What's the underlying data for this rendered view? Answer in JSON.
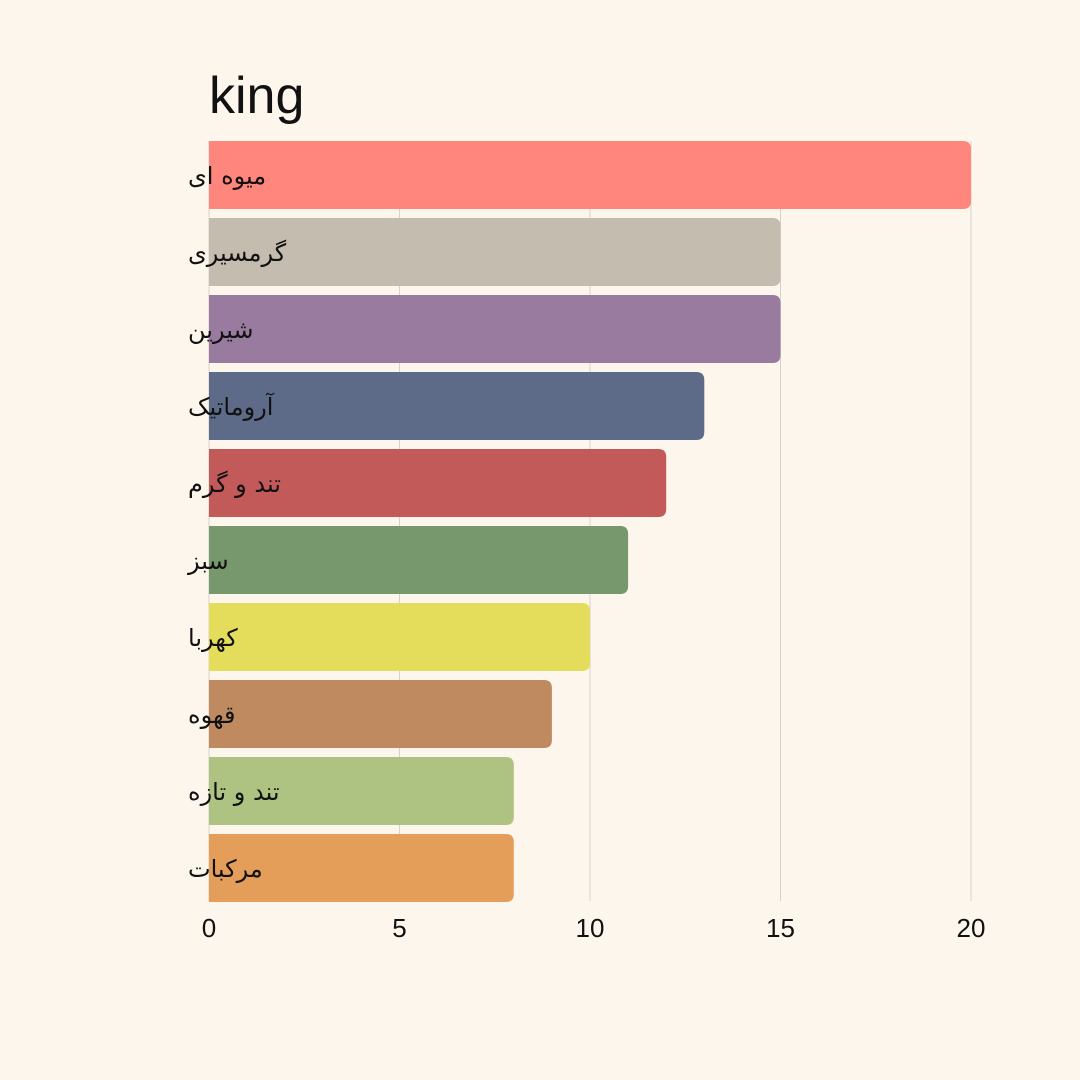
{
  "chart_data": {
    "type": "bar",
    "orientation": "horizontal",
    "title": "king",
    "xlabel": "",
    "ylabel": "",
    "categories": [
      "میوه ای",
      "گرمسیری",
      "شیرین",
      "آروماتیک",
      "تند و گرم",
      "سبز",
      "کهربا",
      "قهوه",
      "تند و تازه",
      "مرکبات"
    ],
    "values": [
      20,
      15,
      15,
      13,
      12,
      11,
      10,
      9,
      8,
      8
    ],
    "colors": [
      "#ff867c",
      "#c4bdaf",
      "#987b9e",
      "#5d6b89",
      "#c25a59",
      "#77976c",
      "#e4dd5b",
      "#bf8a5f",
      "#aec381",
      "#e59e5a"
    ],
    "xlim": [
      0,
      20
    ],
    "xticks": [
      "0",
      "5",
      "10",
      "15",
      "20"
    ],
    "grid": "vertical",
    "legend": "none"
  }
}
